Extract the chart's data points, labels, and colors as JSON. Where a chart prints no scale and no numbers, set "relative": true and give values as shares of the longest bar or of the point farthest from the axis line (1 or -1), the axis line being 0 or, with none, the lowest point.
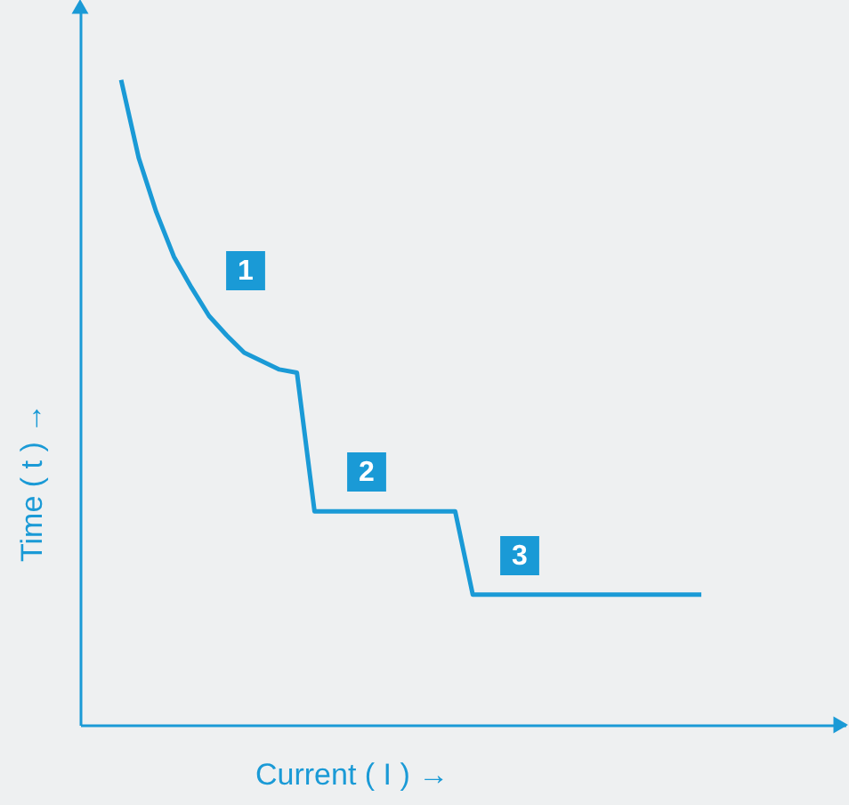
{
  "chart_data": {
    "type": "line",
    "relative": true,
    "grid": false,
    "marker": "none",
    "line_style": "solid",
    "xlabel": "Current ( I )  →",
    "ylabel": "Time ( t )  →",
    "categories": [
      null,
      null,
      null,
      null,
      null,
      null,
      null,
      null,
      null,
      null,
      null,
      null,
      null,
      null,
      null,
      null,
      null,
      null,
      null,
      null,
      null,
      null,
      null,
      null,
      null,
      null,
      null,
      null,
      null,
      null,
      null,
      null,
      null,
      null
    ],
    "series": [
      {
        "color": "#1a9ad6",
        "values": [
          1,
          0.879,
          0.795,
          0.726,
          0.678,
          0.634,
          0.604,
          0.577,
          0.564,
          0.551,
          0.546,
          0.331,
          0.331,
          0.331,
          0.331,
          0.331,
          0.331,
          0.331,
          0.331,
          0.331,
          0.202,
          0.202,
          0.202,
          0.202,
          0.202,
          0.202,
          0.202,
          0.202,
          0.202,
          0.202,
          0.202,
          0.202,
          0.202,
          0.202
        ]
      }
    ],
    "annotations": [
      "1",
      "2",
      "3"
    ]
  }
}
